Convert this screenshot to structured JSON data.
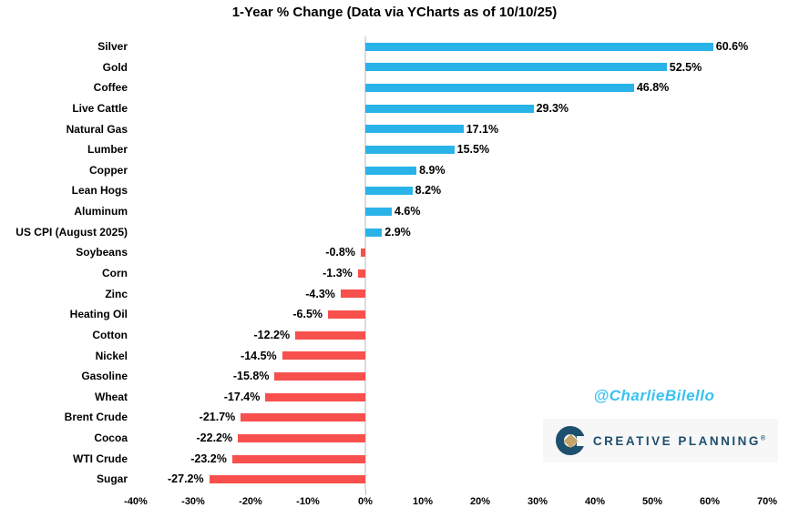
{
  "chart_data": {
    "type": "bar",
    "orientation": "horizontal",
    "title": "1-Year % Change (Data via YCharts as of 10/10/25)",
    "xlabel": "",
    "ylabel": "",
    "grid": false,
    "legend": "none",
    "categories": [
      "Silver",
      "Gold",
      "Coffee",
      "Live Cattle",
      "Natural Gas",
      "Lumber",
      "Copper",
      "Lean Hogs",
      "Aluminum",
      "US CPI (August 2025)",
      "Soybeans",
      "Corn",
      "Zinc",
      "Heating Oil",
      "Cotton",
      "Nickel",
      "Gasoline",
      "Wheat",
      "Brent Crude",
      "Cocoa",
      "WTI Crude",
      "Sugar"
    ],
    "values": [
      60.6,
      52.5,
      46.8,
      29.3,
      17.1,
      15.5,
      8.9,
      8.2,
      4.6,
      2.9,
      -0.8,
      -1.3,
      -4.3,
      -6.5,
      -12.2,
      -14.5,
      -15.8,
      -17.4,
      -21.7,
      -22.2,
      -23.2,
      -27.2
    ],
    "value_labels": [
      "60.6%",
      "52.5%",
      "46.8%",
      "29.3%",
      "17.1%",
      "15.5%",
      "8.9%",
      "8.2%",
      "4.6%",
      "2.9%",
      "-0.8%",
      "-1.3%",
      "-4.3%",
      "-6.5%",
      "-12.2%",
      "-14.5%",
      "-15.8%",
      "-17.4%",
      "-21.7%",
      "-22.2%",
      "-23.2%",
      "-27.2%"
    ],
    "xlim": [
      -40,
      70
    ],
    "x_ticks": [
      "-40%",
      "-30%",
      "-20%",
      "-10%",
      "0%",
      "10%",
      "20%",
      "30%",
      "40%",
      "50%",
      "60%",
      "70%"
    ],
    "x_tick_values": [
      -40,
      -30,
      -20,
      -10,
      0,
      10,
      20,
      30,
      40,
      50,
      60,
      70
    ],
    "positive_color": "#29B3E8",
    "negative_color": "#F8504D",
    "axis_color": "#DCDCDC"
  },
  "watermark": {
    "handle": "@CharlieBilello",
    "color": "#38C2F1"
  },
  "logo": {
    "text": "CREATIVE PLANNING",
    "trademark": "®",
    "navy": "#1D4F6E",
    "gold": "#C5A467"
  }
}
